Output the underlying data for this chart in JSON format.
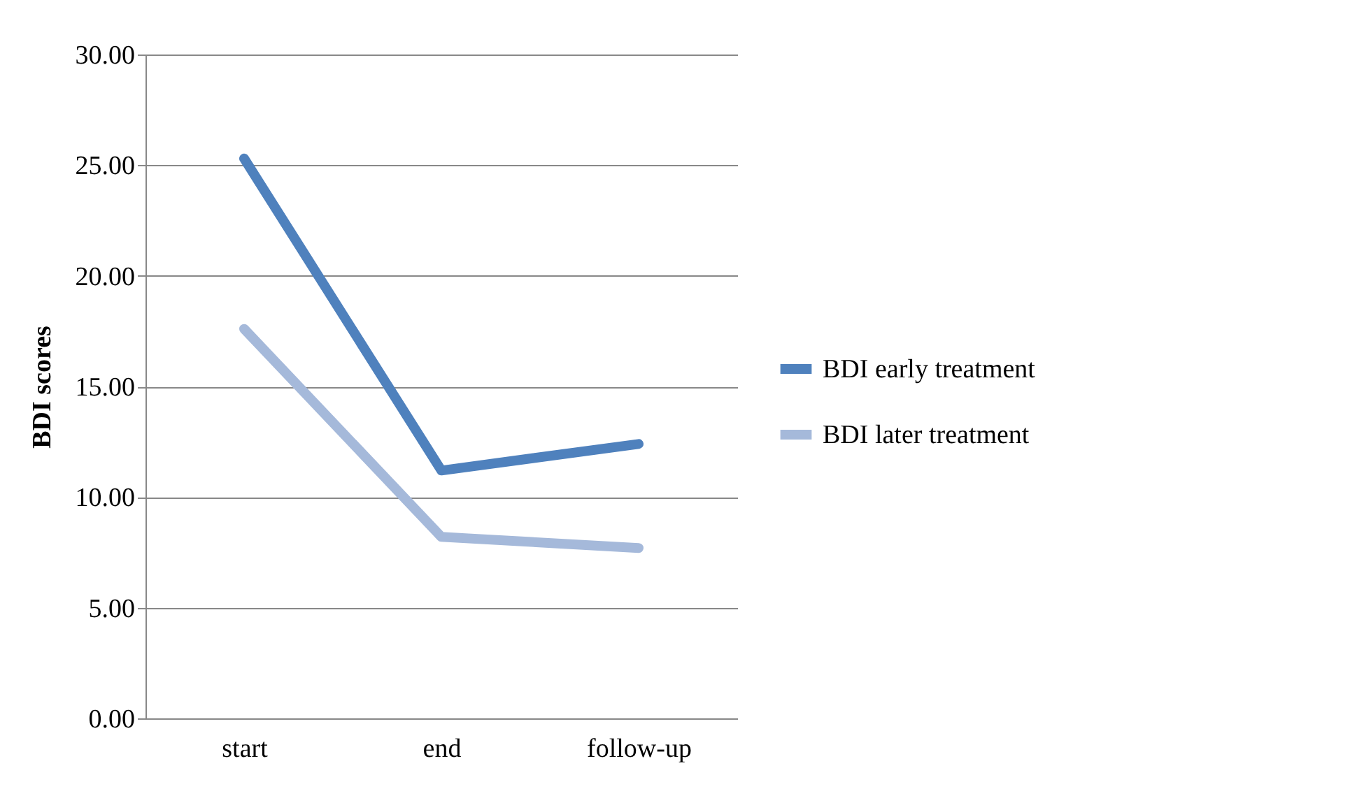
{
  "chart_data": {
    "type": "line",
    "ylabel": "BDI scores",
    "categories": [
      "start",
      "end",
      "follow-up"
    ],
    "series": [
      {
        "name": "BDI early treatment",
        "color": "#4f81bd",
        "values": [
          25.3,
          11.2,
          12.4
        ]
      },
      {
        "name": "BDI later treatment",
        "color": "#a5b9da",
        "values": [
          17.6,
          8.2,
          7.7
        ]
      }
    ],
    "ylim": [
      0,
      30
    ],
    "yticks": [
      {
        "value": 0,
        "label": "0.00"
      },
      {
        "value": 5,
        "label": "5.00"
      },
      {
        "value": 10,
        "label": "10.00"
      },
      {
        "value": 15,
        "label": "15.00"
      },
      {
        "value": 20,
        "label": "20.00"
      },
      {
        "value": 25,
        "label": "25.00"
      },
      {
        "value": 30,
        "label": "30.00"
      }
    ],
    "grid": "y",
    "legend": "right",
    "marker": "none",
    "line_style": "solid"
  }
}
